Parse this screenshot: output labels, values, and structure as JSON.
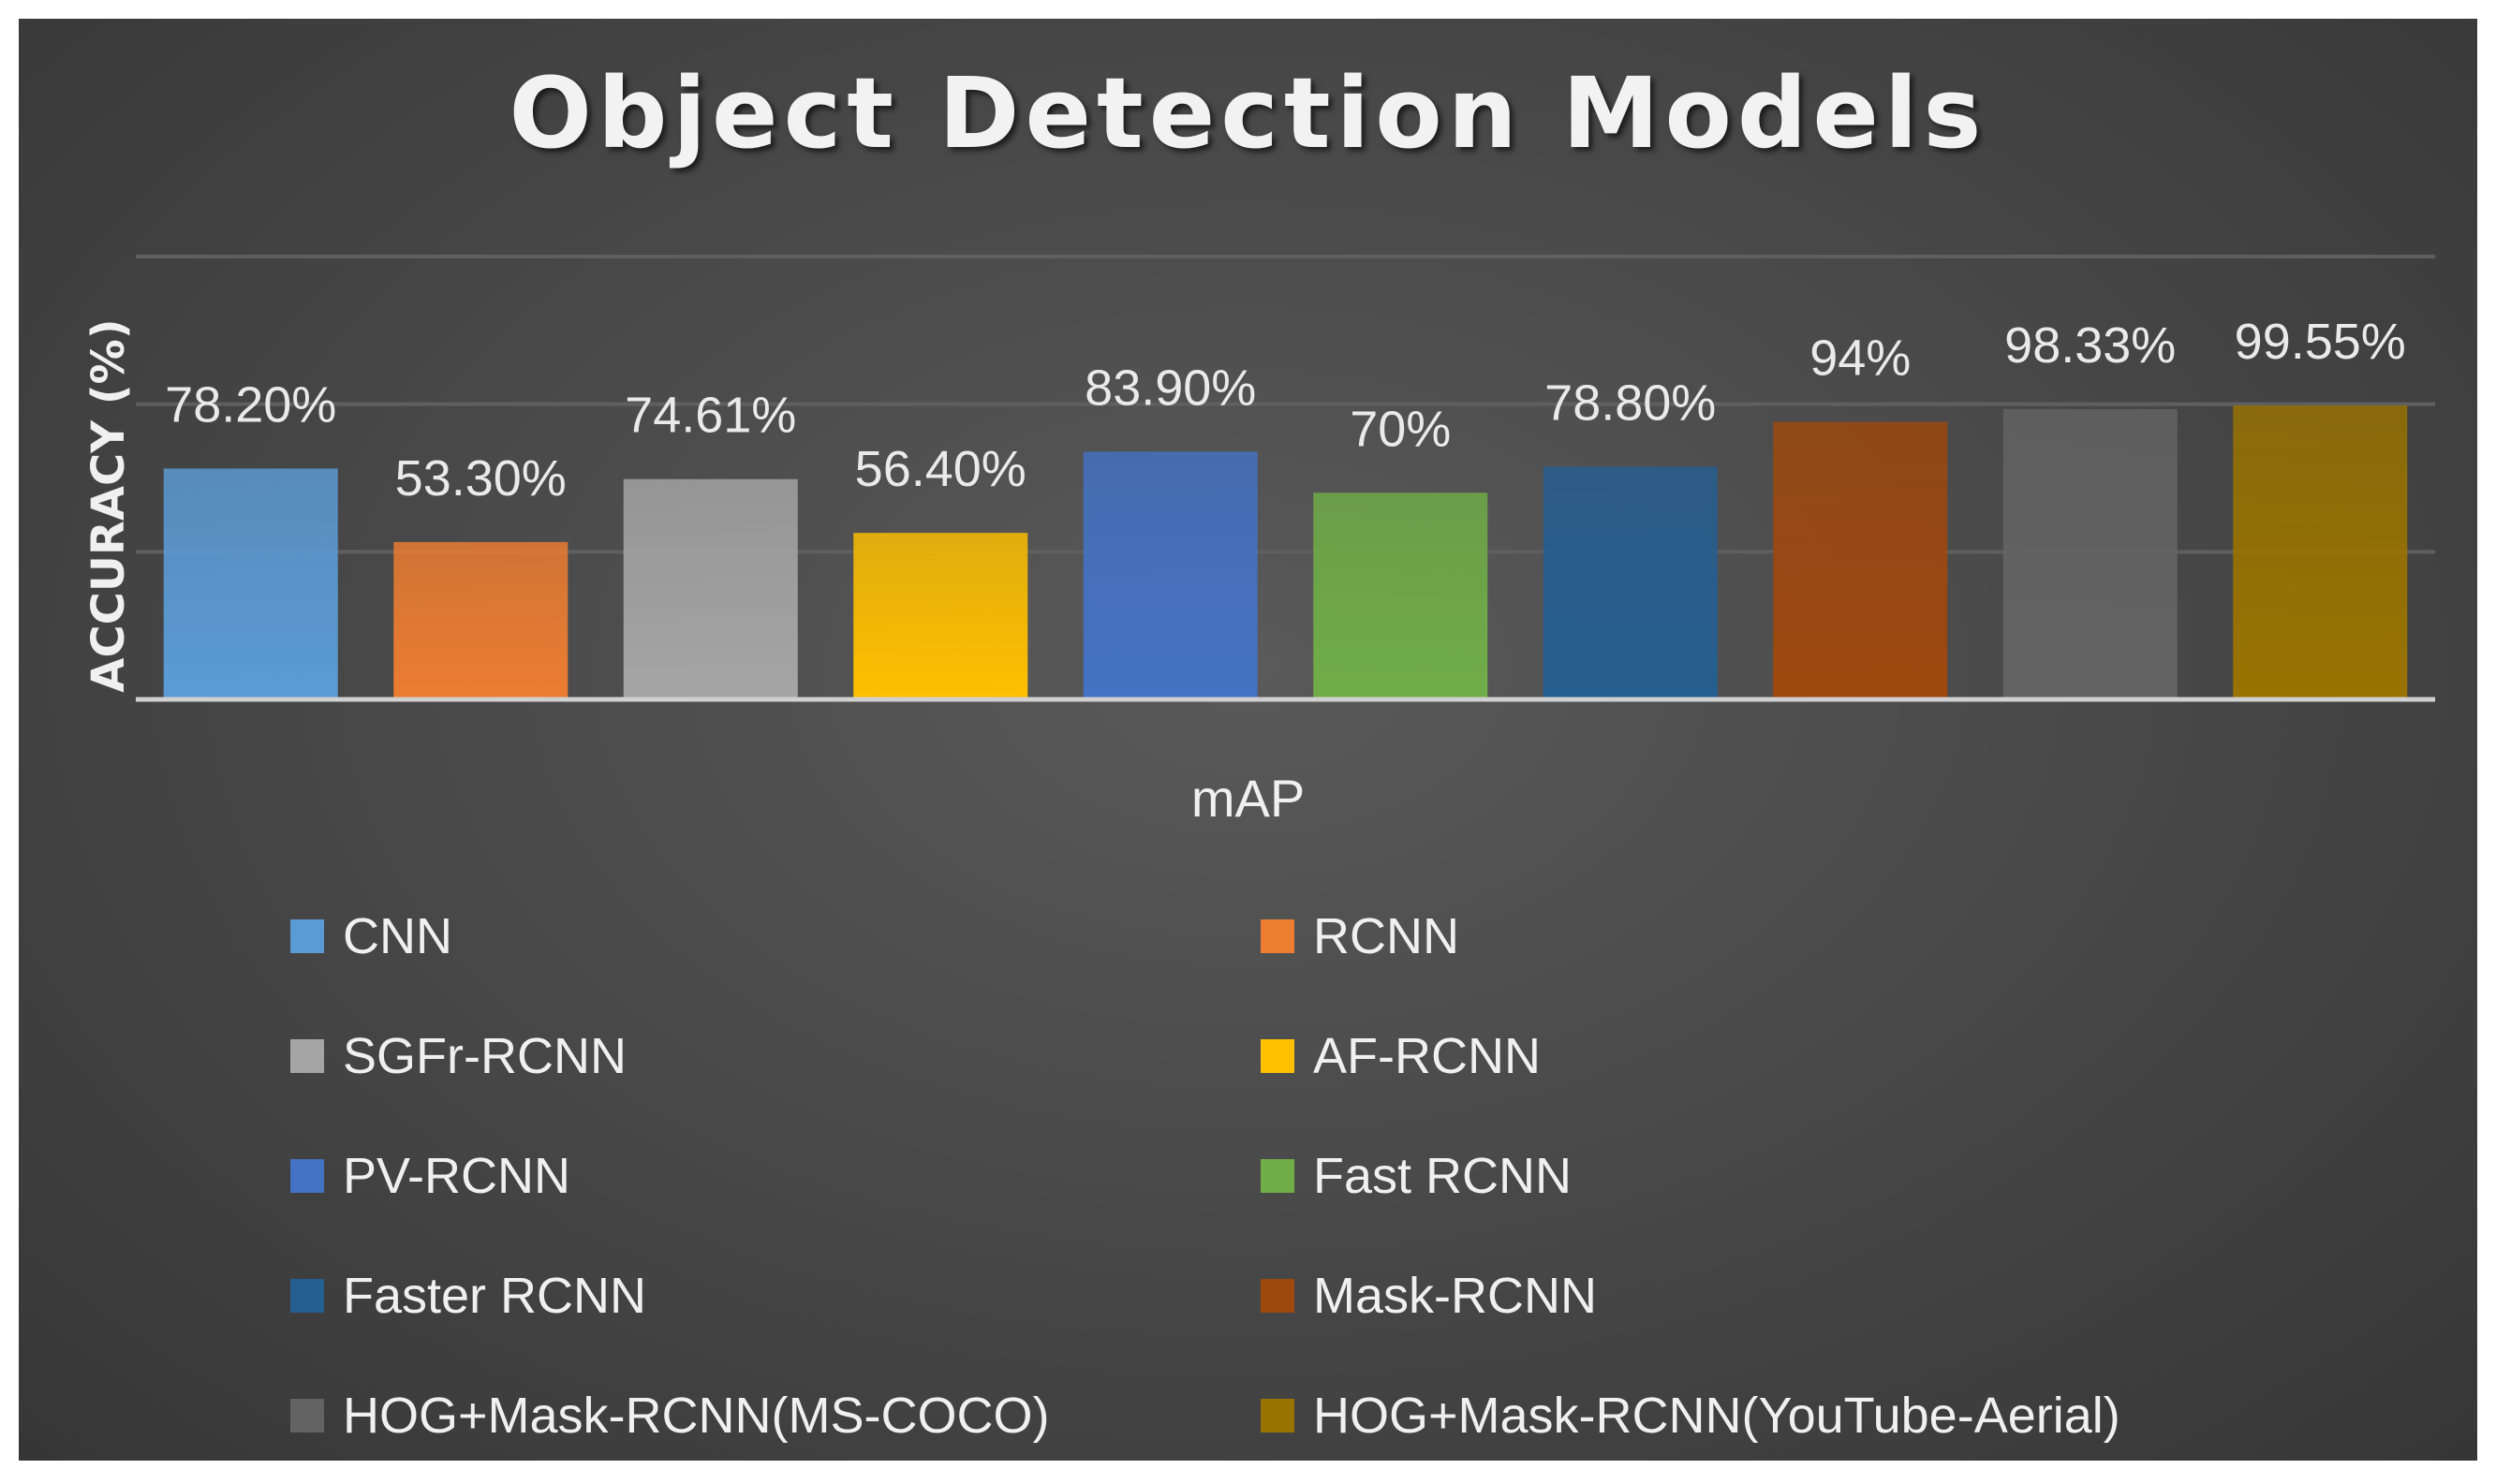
{
  "chart_data": {
    "type": "bar",
    "title": "Object Detection Models",
    "xlabel": "mAP",
    "ylabel": "ACCURACY (%)",
    "ylim": [
      0,
      150
    ],
    "grid": true,
    "legend_position": "bottom",
    "categories": [
      "CNN",
      "RCNN",
      "SGFr-RCNN",
      "AF-RCNN",
      "PV-RCNN",
      "Fast RCNN",
      "Faster RCNN",
      "Mask-RCNN",
      "HOG+Mask-RCNN(MS-COCO)",
      "HOG+Mask-RCNN(YouTube-Aerial)"
    ],
    "values": [
      78.2,
      53.3,
      74.61,
      56.4,
      83.9,
      70,
      78.8,
      94,
      98.33,
      99.55
    ],
    "data_labels": [
      "78.20%",
      "53.30%",
      "74.61%",
      "56.40%",
      "83.90%",
      "70%",
      "78.80%",
      "94%",
      "98.33%",
      "99.55%"
    ],
    "colors": [
      "#5b9bd5",
      "#ed7d31",
      "#a5a5a5",
      "#ffc000",
      "#4472c4",
      "#70ad47",
      "#255e91",
      "#9e480e",
      "#636363",
      "#997300"
    ]
  },
  "legend": {
    "items": [
      {
        "label": "CNN",
        "color": "#5b9bd5"
      },
      {
        "label": "RCNN",
        "color": "#ed7d31"
      },
      {
        "label": "SGFr-RCNN",
        "color": "#a5a5a5"
      },
      {
        "label": "AF-RCNN",
        "color": "#ffc000"
      },
      {
        "label": "PV-RCNN",
        "color": "#4472c4"
      },
      {
        "label": "Fast RCNN",
        "color": "#70ad47"
      },
      {
        "label": "Faster RCNN",
        "color": "#255e91"
      },
      {
        "label": "Mask-RCNN",
        "color": "#9e480e"
      },
      {
        "label": "HOG+Mask-RCNN(MS-COCO)",
        "color": "#636363"
      },
      {
        "label": "HOG+Mask-RCNN(YouTube-Aerial)",
        "color": "#997300"
      }
    ]
  }
}
